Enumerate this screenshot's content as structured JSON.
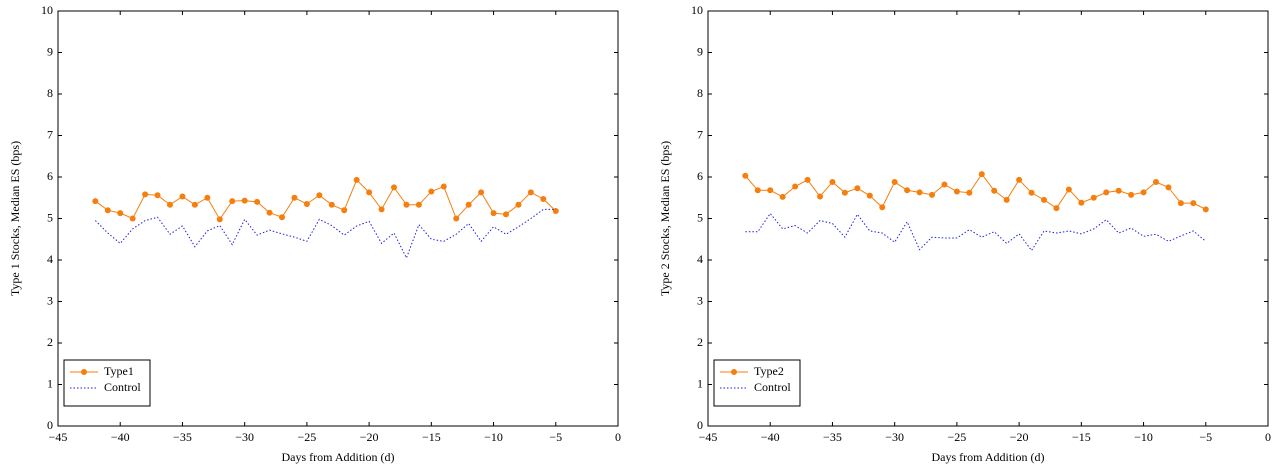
{
  "chart_data": [
    {
      "type": "line",
      "xlabel": "Days from Addition (d)",
      "ylabel": "Type 1 Stocks, Median ES (bps)",
      "x": [
        -42,
        -41,
        -40,
        -39,
        -38,
        -37,
        -36,
        -35,
        -34,
        -33,
        -32,
        -31,
        -30,
        -29,
        -28,
        -27,
        -26,
        -25,
        -24,
        -23,
        -22,
        -21,
        -20,
        -19,
        -18,
        -17,
        -16,
        -15,
        -14,
        -13,
        -12,
        -11,
        -10,
        -9,
        -8,
        -7,
        -6,
        -5
      ],
      "series": [
        {
          "name": "Type1",
          "color": "#f57f0e",
          "style": "solid",
          "marker": "circle",
          "values": [
            5.42,
            5.2,
            5.13,
            5.0,
            5.58,
            5.56,
            5.33,
            5.53,
            5.33,
            5.5,
            4.98,
            5.42,
            5.43,
            5.4,
            5.14,
            5.03,
            5.5,
            5.35,
            5.56,
            5.33,
            5.2,
            5.93,
            5.63,
            5.22,
            5.75,
            5.33,
            5.33,
            5.65,
            5.77,
            5.0,
            5.33,
            5.63,
            5.13,
            5.1,
            5.33,
            5.63,
            5.47,
            5.18
          ]
        },
        {
          "name": "Control",
          "color": "#1f1fe0",
          "style": "dotted",
          "marker": "none",
          "values": [
            4.95,
            4.65,
            4.4,
            4.75,
            4.95,
            5.03,
            4.62,
            4.82,
            4.32,
            4.7,
            4.83,
            4.37,
            4.98,
            4.6,
            4.72,
            4.63,
            4.55,
            4.45,
            4.98,
            4.83,
            4.6,
            4.82,
            4.93,
            4.4,
            4.65,
            4.05,
            4.85,
            4.5,
            4.45,
            4.62,
            4.88,
            4.45,
            4.8,
            4.62,
            4.8,
            5.0,
            5.22,
            5.22
          ]
        }
      ],
      "xlim": [
        -45,
        0
      ],
      "ylim": [
        0,
        10
      ],
      "xticks": [
        {
          "value": -45,
          "label": "−45"
        },
        {
          "value": -40,
          "label": "−40"
        },
        {
          "value": -35,
          "label": "−35"
        },
        {
          "value": -30,
          "label": "−30"
        },
        {
          "value": -25,
          "label": "−25"
        },
        {
          "value": -20,
          "label": "−20"
        },
        {
          "value": -15,
          "label": "−15"
        },
        {
          "value": -10,
          "label": "−10"
        },
        {
          "value": -5,
          "label": "−5"
        },
        0
      ],
      "yticks": [
        0,
        1,
        2,
        3,
        4,
        5,
        6,
        7,
        8,
        9,
        10
      ],
      "legend": "lower left"
    },
    {
      "type": "line",
      "xlabel": "Days from Addition (d)",
      "ylabel": "Type 2 Stocks, Median ES (bps)",
      "x": [
        -42,
        -41,
        -40,
        -39,
        -38,
        -37,
        -36,
        -35,
        -34,
        -33,
        -32,
        -31,
        -30,
        -29,
        -28,
        -27,
        -26,
        -25,
        -24,
        -23,
        -22,
        -21,
        -20,
        -19,
        -18,
        -17,
        -16,
        -15,
        -14,
        -13,
        -12,
        -11,
        -10,
        -9,
        -8,
        -7,
        -6,
        -5
      ],
      "series": [
        {
          "name": "Type2",
          "color": "#f57f0e",
          "style": "solid",
          "marker": "circle",
          "values": [
            6.03,
            5.68,
            5.68,
            5.52,
            5.77,
            5.93,
            5.53,
            5.88,
            5.62,
            5.73,
            5.55,
            5.27,
            5.88,
            5.68,
            5.63,
            5.57,
            5.82,
            5.65,
            5.62,
            6.07,
            5.67,
            5.45,
            5.93,
            5.62,
            5.45,
            5.25,
            5.7,
            5.38,
            5.5,
            5.63,
            5.67,
            5.57,
            5.63,
            5.88,
            5.75,
            5.37,
            5.37,
            5.22
          ]
        },
        {
          "name": "Control",
          "color": "#1f1fe0",
          "style": "dotted",
          "marker": "none",
          "values": [
            4.68,
            4.68,
            5.12,
            4.75,
            4.83,
            4.65,
            4.95,
            4.88,
            4.55,
            5.1,
            4.7,
            4.65,
            4.43,
            4.92,
            4.25,
            4.55,
            4.53,
            4.53,
            4.73,
            4.55,
            4.68,
            4.4,
            4.63,
            4.23,
            4.7,
            4.65,
            4.7,
            4.63,
            4.75,
            4.97,
            4.65,
            4.77,
            4.57,
            4.62,
            4.45,
            4.58,
            4.7,
            4.45
          ]
        }
      ],
      "xlim": [
        -45,
        0
      ],
      "ylim": [
        0,
        10
      ],
      "xticks": [
        {
          "value": -45,
          "label": "−45"
        },
        {
          "value": -40,
          "label": "−40"
        },
        {
          "value": -35,
          "label": "−35"
        },
        {
          "value": -30,
          "label": "−30"
        },
        {
          "value": -25,
          "label": "−25"
        },
        {
          "value": -20,
          "label": "−20"
        },
        {
          "value": -15,
          "label": "−15"
        },
        {
          "value": -10,
          "label": "−10"
        },
        {
          "value": -5,
          "label": "−5"
        },
        0
      ],
      "yticks": [
        0,
        1,
        2,
        3,
        4,
        5,
        6,
        7,
        8,
        9,
        10
      ],
      "legend": "lower left"
    }
  ]
}
